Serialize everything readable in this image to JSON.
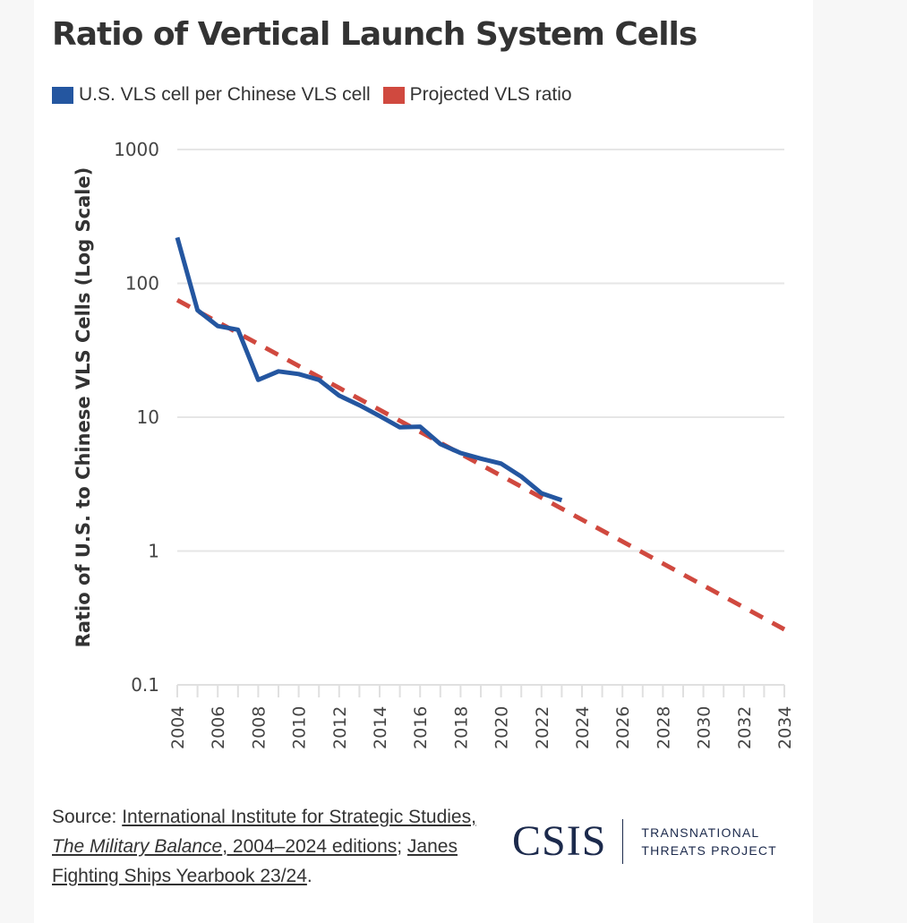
{
  "chart_data": {
    "type": "line",
    "title": "Ratio of Vertical Launch System Cells",
    "xlabel": "",
    "ylabel": "Ratio of U.S. to Chinese VLS Cells (Log Scale)",
    "yscale": "log",
    "ylim": [
      0.1,
      1000
    ],
    "xlim": [
      2004,
      2034
    ],
    "y_ticks": [
      1000,
      100,
      10,
      1,
      0.1
    ],
    "y_tick_labels": [
      "1000",
      "100",
      "10",
      "1",
      "0.1"
    ],
    "x_ticks": [
      2004,
      2006,
      2008,
      2010,
      2012,
      2014,
      2016,
      2018,
      2020,
      2022,
      2024,
      2026,
      2028,
      2030,
      2032,
      2034
    ],
    "x_tick_labels": [
      "2004",
      "2006",
      "2008",
      "2010",
      "2012",
      "2014",
      "2016",
      "2018",
      "2020",
      "2022",
      "2024",
      "2026",
      "2028",
      "2030",
      "2032",
      "2034"
    ],
    "grid": true,
    "legend_position": "top-left",
    "series": [
      {
        "name": "U.S. VLS cell per Chinese VLS cell",
        "color": "#2456a0",
        "style": "solid",
        "x": [
          2004,
          2005,
          2006,
          2007,
          2008,
          2009,
          2010,
          2011,
          2012,
          2013,
          2014,
          2015,
          2016,
          2017,
          2018,
          2019,
          2020,
          2021,
          2022,
          2023
        ],
        "values": [
          220,
          63,
          48,
          45,
          19,
          22,
          21,
          19,
          14.5,
          12.3,
          10.2,
          8.4,
          8.5,
          6.3,
          5.4,
          4.9,
          4.5,
          3.6,
          2.7,
          2.4
        ]
      },
      {
        "name": "Projected VLS ratio",
        "color": "#d0493f",
        "style": "dashed",
        "x": [
          2004,
          2034
        ],
        "values": [
          75,
          0.26
        ]
      }
    ]
  },
  "source": {
    "prefix": "Source: ",
    "link1_a": "International Institute for Strategic Studies, ",
    "link1_italic": "The Military Balance",
    "link1_b": ", 2004–2024 editions",
    "sep": "; ",
    "link2": "Janes Fighting Ships Yearbook 23/24",
    "suffix": "."
  },
  "logo": {
    "name": "CSIS",
    "line1": "TRANSNATIONAL",
    "line2": "THREATS PROJECT"
  }
}
